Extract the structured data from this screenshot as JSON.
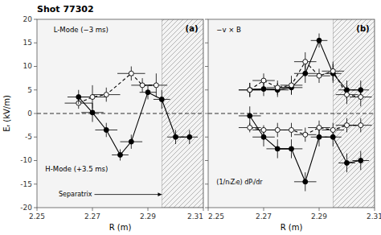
{
  "chart_data": [
    {
      "type": "line",
      "title": "Shot 77302",
      "xlabel": "R (m)",
      "ylabel": "Eᵣ (kV/m)",
      "xlim": [
        2.25,
        2.31
      ],
      "ylim": [
        -20,
        20
      ],
      "xticks": [
        2.25,
        2.27,
        2.29,
        2.31
      ],
      "yticks": [
        -20,
        -15,
        -10,
        -5,
        0,
        5,
        10,
        15,
        20
      ],
      "grid": false,
      "hlines": [
        0
      ],
      "spans": [
        {
          "x0": 2.295,
          "x1": 2.31,
          "label": "Separatrix"
        }
      ],
      "annotations": [
        "(a)",
        "L-Mode (−3 ms)",
        "H-Mode (+3.5 ms)"
      ],
      "series": [
        {
          "color": "black",
          "marker": "open-circle",
          "line_style": "dashed",
          "x": [
            2.265,
            2.27,
            2.275,
            2.284,
            2.288,
            2.293
          ],
          "values": [
            2.2,
            3.5,
            4.0,
            8.5,
            6.0,
            6.0
          ],
          "xerr": [
            0.005,
            0.005,
            0.005,
            0.005,
            0.004,
            0.004
          ],
          "yerr": [
            1.2,
            2.5,
            1.5,
            1.5,
            1.5,
            2.5
          ]
        },
        {
          "color": "black",
          "marker": "filled-circle",
          "line_style": "solid",
          "x": [
            2.265,
            2.27,
            2.275,
            2.28,
            2.284,
            2.29,
            2.295,
            2.3,
            2.305
          ],
          "values": [
            3.5,
            0.2,
            -3.5,
            -8.8,
            -6.0,
            4.5,
            3.0,
            -5.0,
            -5.0
          ],
          "xerr": [
            0.004,
            0.004,
            0.004,
            0.003,
            0.004,
            0.003,
            0.003,
            0.003,
            0.003
          ],
          "yerr": [
            1.5,
            2.0,
            1.5,
            1.2,
            1.5,
            1.5,
            2.0,
            1.5,
            1.5
          ]
        }
      ]
    },
    {
      "type": "line",
      "xlabel": "R (m)",
      "xlim": [
        2.25,
        2.31
      ],
      "ylim": [
        -20,
        20
      ],
      "xticks": [
        2.25,
        2.27,
        2.29,
        2.31
      ],
      "yticks": [
        -20,
        -15,
        -10,
        -5,
        0,
        5,
        10,
        15,
        20
      ],
      "grid": false,
      "tick_labels": "x",
      "hlines": [
        0
      ],
      "spans": [
        {
          "x0": 2.295,
          "x1": 2.31
        }
      ],
      "annotations": [
        "(b)",
        "−v × B",
        "(1/nᵢZᵢe) dPᵢ/dr"
      ],
      "series": [
        {
          "color": "black",
          "marker": "filled-circle",
          "line_style": "solid",
          "x": [
            2.265,
            2.27,
            2.275,
            2.28,
            2.285,
            2.29,
            2.295,
            2.3,
            2.305
          ],
          "values": [
            5.0,
            5.2,
            5.0,
            5.5,
            8.5,
            15.5,
            8.5,
            5.0,
            5.0
          ],
          "xerr": [
            0.004,
            0.004,
            0.004,
            0.004,
            0.004,
            0.003,
            0.003,
            0.003,
            0.003
          ],
          "yerr": [
            1.5,
            1.5,
            1.5,
            1.5,
            2.0,
            1.5,
            2.0,
            2.0,
            2.0
          ]
        },
        {
          "color": "black",
          "marker": "open-circle",
          "line_style": "dashed",
          "x": [
            2.265,
            2.27,
            2.275,
            2.28,
            2.285,
            2.29,
            2.295,
            2.3,
            2.305
          ],
          "values": [
            5.0,
            7.0,
            5.5,
            6.0,
            11.0,
            8.0,
            9.0,
            4.0,
            3.5
          ],
          "xerr": [
            0.004,
            0.004,
            0.004,
            0.004,
            0.004,
            0.004,
            0.004,
            0.004,
            0.004
          ],
          "yerr": [
            1.5,
            1.5,
            1.5,
            2.0,
            2.0,
            1.5,
            2.0,
            2.0,
            2.0
          ]
        },
        {
          "color": "black",
          "marker": "filled-circle",
          "line_style": "solid",
          "x": [
            2.265,
            2.27,
            2.275,
            2.28,
            2.285,
            2.29,
            2.295,
            2.3,
            2.305
          ],
          "values": [
            -0.5,
            -5.0,
            -7.5,
            -7.5,
            -14.5,
            -5.0,
            -5.0,
            -10.5,
            -10.0
          ],
          "xerr": [
            0.004,
            0.004,
            0.004,
            0.004,
            0.004,
            0.003,
            0.003,
            0.003,
            0.003
          ],
          "yerr": [
            2.0,
            2.0,
            2.0,
            2.0,
            2.0,
            2.0,
            2.0,
            2.0,
            2.0
          ]
        },
        {
          "color": "black",
          "marker": "open-circle",
          "line_style": "dashed",
          "x": [
            2.265,
            2.27,
            2.275,
            2.28,
            2.285,
            2.29,
            2.295,
            2.3,
            2.305
          ],
          "values": [
            -3.0,
            -3.5,
            -3.5,
            -3.5,
            -4.5,
            -3.0,
            -3.5,
            -2.5,
            -2.5
          ],
          "xerr": [
            0.004,
            0.004,
            0.004,
            0.004,
            0.004,
            0.004,
            0.004,
            0.004,
            0.004
          ],
          "yerr": [
            1.0,
            1.0,
            1.5,
            1.5,
            1.5,
            1.5,
            1.5,
            1.5,
            1.5
          ]
        }
      ]
    }
  ]
}
